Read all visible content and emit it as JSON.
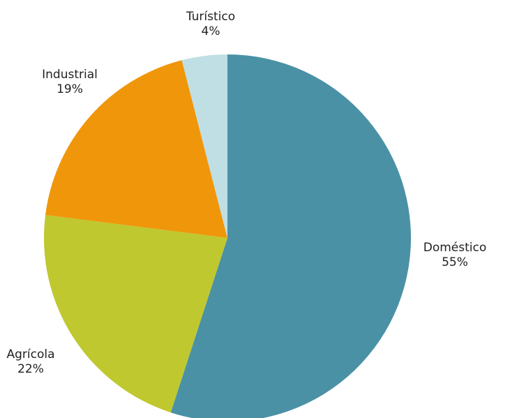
{
  "chart_data": {
    "type": "pie",
    "categories": [
      "Doméstico",
      "Agrícola",
      "Industrial",
      "Turístico"
    ],
    "values": [
      55,
      22,
      19,
      4
    ],
    "value_labels": [
      "55%",
      "22%",
      "19%",
      "4%"
    ],
    "colors": [
      "#4a91a5",
      "#bfc82f",
      "#f0960b",
      "#bfdfe5"
    ]
  }
}
